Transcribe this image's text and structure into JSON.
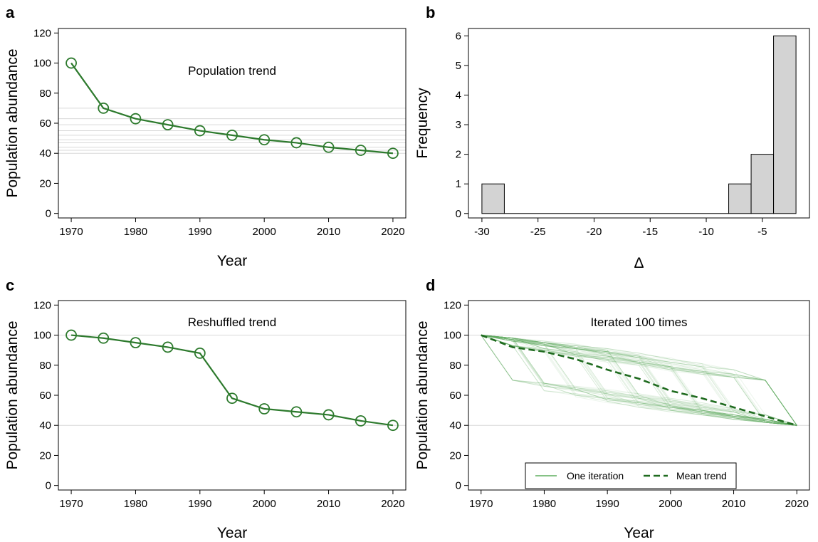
{
  "chart_data": [
    {
      "panel": "a",
      "type": "line",
      "title": "Population trend",
      "xlabel": "Year",
      "ylabel": "Population abundance",
      "x": [
        1970,
        1975,
        1980,
        1985,
        1990,
        1995,
        2000,
        2005,
        2010,
        2015,
        2020
      ],
      "values": [
        100,
        70,
        63,
        59,
        55,
        52,
        49,
        47,
        44,
        42,
        40
      ],
      "xlim": [
        1968,
        2022
      ],
      "ylim": [
        -3,
        123
      ],
      "xticks": [
        1970,
        1980,
        1990,
        2000,
        2010,
        2020
      ],
      "yticks": [
        0,
        20,
        40,
        60,
        80,
        100,
        120
      ],
      "reference_lines": [
        70,
        63,
        59,
        55,
        52,
        49,
        47,
        44,
        42,
        40
      ],
      "color": "#2d7a2d",
      "reference_color": "#d9d9d9"
    },
    {
      "panel": "b",
      "type": "bar",
      "title": "",
      "xlabel": "Δ",
      "ylabel": "Frequency",
      "bins": [
        {
          "from": -30,
          "to": -28,
          "count": 1
        },
        {
          "from": -28,
          "to": -8,
          "count": 0
        },
        {
          "from": -8,
          "to": -6,
          "count": 1
        },
        {
          "from": -6,
          "to": -4,
          "count": 2
        },
        {
          "from": -4,
          "to": -2,
          "count": 6
        }
      ],
      "xlim": [
        -31.2,
        -0.8
      ],
      "ylim": [
        -0.15,
        6.25
      ],
      "xticks": [
        -30,
        -25,
        -20,
        -15,
        -10,
        -5
      ],
      "yticks": [
        0,
        1,
        2,
        3,
        4,
        5,
        6
      ],
      "bar_color": "#d3d3d3"
    },
    {
      "panel": "c",
      "type": "line",
      "title": "Reshuffled trend",
      "xlabel": "Year",
      "ylabel": "Population abundance",
      "x": [
        1970,
        1975,
        1980,
        1985,
        1990,
        1995,
        2000,
        2005,
        2010,
        2015,
        2020
      ],
      "values": [
        100,
        98,
        95,
        92,
        88,
        58,
        51,
        49,
        47,
        43,
        40
      ],
      "xlim": [
        1968,
        2022
      ],
      "ylim": [
        -3,
        123
      ],
      "xticks": [
        1970,
        1980,
        1990,
        2000,
        2010,
        2020
      ],
      "yticks": [
        0,
        20,
        40,
        60,
        80,
        100,
        120
      ],
      "reference_lines": [
        100,
        40
      ],
      "color": "#2d7a2d",
      "reference_color": "#d9d9d9"
    },
    {
      "panel": "d",
      "type": "line",
      "title": "Iterated 100 times",
      "xlabel": "Year",
      "ylabel": "Population abundance",
      "x": [
        1970,
        1975,
        1980,
        1985,
        1990,
        1995,
        2000,
        2005,
        2010,
        2015,
        2020
      ],
      "mean_trend": [
        100,
        92,
        89,
        84,
        77,
        71,
        63,
        58,
        52,
        46,
        40
      ],
      "iteration_count": 100,
      "xlim": [
        1968,
        2022
      ],
      "ylim": [
        -3,
        123
      ],
      "xticks": [
        1970,
        1980,
        1990,
        2000,
        2010,
        2020
      ],
      "yticks": [
        0,
        20,
        40,
        60,
        80,
        100,
        120
      ],
      "reference_lines": [
        100,
        40
      ],
      "legend": [
        "One iteration",
        "Mean trend"
      ],
      "legend_position": "bottom-center",
      "iteration_color": "#5fae5f",
      "mean_color": "#1f6b1f",
      "reference_color": "#d9d9d9"
    }
  ],
  "panel_letters": [
    "a",
    "b",
    "c",
    "d"
  ]
}
